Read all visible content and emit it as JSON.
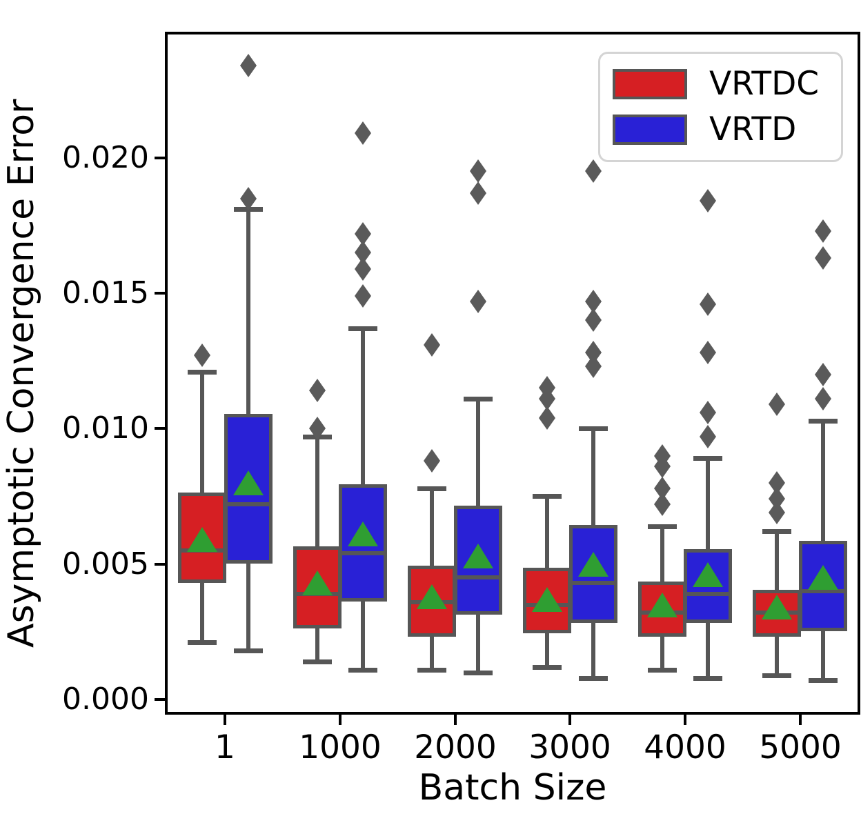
{
  "figure": {
    "background": "#ffffff"
  },
  "chart_data": {
    "type": "grouped_boxplot",
    "title": "",
    "xlabel": "Batch Size",
    "ylabel": "Asymptotic Convergence Error",
    "categories": [
      "1",
      "1000",
      "2000",
      "3000",
      "4000",
      "5000"
    ],
    "y_ticks": [
      {
        "value": 0.0,
        "label": "0.000"
      },
      {
        "value": 0.005,
        "label": "0.005"
      },
      {
        "value": 0.01,
        "label": "0.010"
      },
      {
        "value": 0.015,
        "label": "0.015"
      },
      {
        "value": 0.02,
        "label": "0.020"
      }
    ],
    "ylim": [
      -0.00046,
      0.02455
    ],
    "grid": false,
    "legend": {
      "position": "upper right",
      "entries": [
        {
          "label": "VRTDC",
          "color": "#d61f23"
        },
        {
          "label": "VRTD",
          "color": "#2921d6"
        }
      ]
    },
    "style": {
      "box_edge": "#565656",
      "whisker": "#565656",
      "outlier_marker": "#5a5a5a",
      "mean_marker": "#2f9e32",
      "spine": "#000000"
    },
    "series": [
      {
        "name": "VRTDC",
        "color": "#d61f23",
        "boxes": [
          {
            "category": "1",
            "whisker_low": 0.0021,
            "q1": 0.0044,
            "median": 0.0055,
            "q3": 0.0076,
            "whisker_high": 0.0121,
            "mean": 0.0059,
            "outliers": [
              0.0127
            ]
          },
          {
            "category": "1000",
            "whisker_low": 0.0014,
            "q1": 0.0027,
            "median": 0.0039,
            "q3": 0.0056,
            "whisker_high": 0.0097,
            "mean": 0.0043,
            "outliers": [
              0.0114,
              0.01
            ]
          },
          {
            "category": "2000",
            "whisker_low": 0.0011,
            "q1": 0.0024,
            "median": 0.0036,
            "q3": 0.0049,
            "whisker_high": 0.0078,
            "mean": 0.0038,
            "outliers": [
              0.0131,
              0.0088
            ]
          },
          {
            "category": "3000",
            "whisker_low": 0.0012,
            "q1": 0.0025,
            "median": 0.0035,
            "q3": 0.0048,
            "whisker_high": 0.0075,
            "mean": 0.0037,
            "outliers": [
              0.0115,
              0.0111,
              0.0104
            ]
          },
          {
            "category": "4000",
            "whisker_low": 0.0011,
            "q1": 0.0024,
            "median": 0.0032,
            "q3": 0.0043,
            "whisker_high": 0.0064,
            "mean": 0.0035,
            "outliers": [
              0.009,
              0.0086,
              0.0078,
              0.0072
            ]
          },
          {
            "category": "5000",
            "whisker_low": 0.0009,
            "q1": 0.0024,
            "median": 0.0032,
            "q3": 0.004,
            "whisker_high": 0.0062,
            "mean": 0.0034,
            "outliers": [
              0.0109,
              0.008,
              0.0074,
              0.0069
            ]
          }
        ]
      },
      {
        "name": "VRTD",
        "color": "#2921d6",
        "boxes": [
          {
            "category": "1",
            "whisker_low": 0.0018,
            "q1": 0.0051,
            "median": 0.0072,
            "q3": 0.0105,
            "whisker_high": 0.0181,
            "mean": 0.008,
            "outliers": [
              0.0234,
              0.0185
            ]
          },
          {
            "category": "1000",
            "whisker_low": 0.0011,
            "q1": 0.0037,
            "median": 0.0054,
            "q3": 0.0079,
            "whisker_high": 0.0137,
            "mean": 0.0061,
            "outliers": [
              0.0209,
              0.0172,
              0.0165,
              0.0159,
              0.0149
            ]
          },
          {
            "category": "2000",
            "whisker_low": 0.001,
            "q1": 0.0032,
            "median": 0.0045,
            "q3": 0.0071,
            "whisker_high": 0.0111,
            "mean": 0.0053,
            "outliers": [
              0.0195,
              0.0187,
              0.0147
            ]
          },
          {
            "category": "3000",
            "whisker_low": 0.0008,
            "q1": 0.0029,
            "median": 0.0043,
            "q3": 0.0064,
            "whisker_high": 0.01,
            "mean": 0.005,
            "outliers": [
              0.0195,
              0.0147,
              0.014,
              0.0128,
              0.0123
            ]
          },
          {
            "category": "4000",
            "whisker_low": 0.0008,
            "q1": 0.0029,
            "median": 0.0039,
            "q3": 0.0055,
            "whisker_high": 0.0089,
            "mean": 0.0046,
            "outliers": [
              0.0184,
              0.0146,
              0.0128,
              0.0106,
              0.0097
            ]
          },
          {
            "category": "5000",
            "whisker_low": 0.0007,
            "q1": 0.0026,
            "median": 0.004,
            "q3": 0.0058,
            "whisker_high": 0.0103,
            "mean": 0.0045,
            "outliers": [
              0.0173,
              0.0163,
              0.012,
              0.0111
            ]
          }
        ]
      }
    ]
  }
}
